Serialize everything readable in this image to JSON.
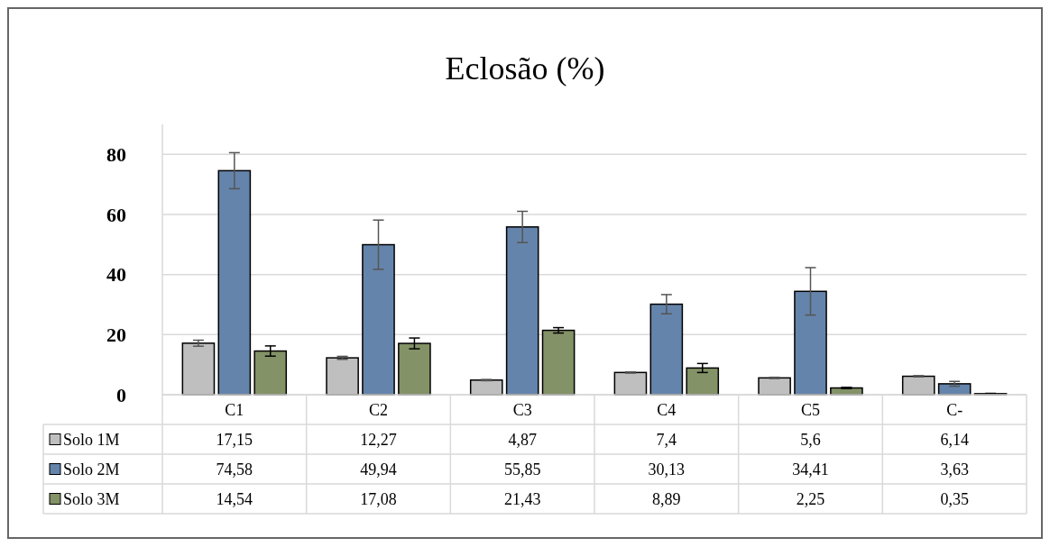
{
  "chart_data": {
    "type": "bar",
    "title": "Eclosão (%)",
    "categories": [
      "C1",
      "C2",
      "C3",
      "C4",
      "C5",
      "C-"
    ],
    "series": [
      {
        "name": "Solo 1M",
        "color": "#bfbfbf",
        "values": [
          17.15,
          12.27,
          4.87,
          7.4,
          5.6,
          6.14
        ],
        "value_labels": [
          "17,15",
          "12,27",
          "4,87",
          "7,4",
          "5,6",
          "6,14"
        ],
        "errors": [
          1,
          0.5,
          0.2,
          0.2,
          0.2,
          0.2
        ]
      },
      {
        "name": "Solo 2M",
        "color": "#6584ab",
        "values": [
          74.58,
          49.94,
          55.85,
          30.13,
          34.41,
          3.63
        ],
        "value_labels": [
          "74,58",
          "49,94",
          "55,85",
          "30,13",
          "34,41",
          "3,63"
        ],
        "errors": [
          6,
          8.2,
          5.2,
          3.2,
          7.9,
          0.8
        ]
      },
      {
        "name": "Solo 3M",
        "color": "#839267",
        "values": [
          14.54,
          17.08,
          21.43,
          8.89,
          2.25,
          0.35
        ],
        "value_labels": [
          "14,54",
          "17,08",
          "21,43",
          "8,89",
          "2,25",
          "0,35"
        ],
        "errors": [
          1.7,
          1.8,
          0.9,
          1.5,
          0.2,
          0.1
        ]
      }
    ],
    "ylim": [
      0,
      90
    ],
    "yticks": [
      0,
      20,
      40,
      60,
      80
    ],
    "grid": "y",
    "legend": "bottom"
  }
}
